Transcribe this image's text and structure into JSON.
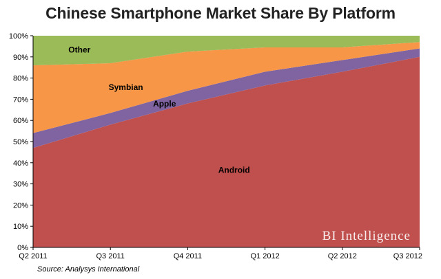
{
  "title": "Chinese Smartphone Market Share By Platform",
  "source": "Source: Analysys International",
  "watermark": "BI Intelligence",
  "colors": {
    "Android": "#c0504d",
    "Apple": "#8064a2",
    "Symbian": "#f79646",
    "Other": "#9bbb59"
  },
  "chart_data": {
    "type": "area",
    "stacked": true,
    "title": "Chinese Smartphone Market Share By Platform",
    "categories": [
      "Q2 2011",
      "Q3 2011",
      "Q4 2011",
      "Q1 2012",
      "Q2 2012",
      "Q3 2012"
    ],
    "ylim": [
      0,
      100
    ],
    "yticks": [
      "0%",
      "10%",
      "20%",
      "30%",
      "40%",
      "50%",
      "60%",
      "70%",
      "80%",
      "90%",
      "100%"
    ],
    "series": [
      {
        "name": "Android",
        "values": [
          47,
          58,
          68,
          76.5,
          83,
          90
        ]
      },
      {
        "name": "Apple",
        "values": [
          7,
          5.5,
          6,
          6.5,
          5.5,
          4
        ]
      },
      {
        "name": "Symbian",
        "values": [
          32,
          23.5,
          18.5,
          11.5,
          6,
          3
        ]
      },
      {
        "name": "Other",
        "values": [
          14,
          13,
          7.5,
          5.5,
          5.5,
          3
        ]
      }
    ],
    "grid": false,
    "legend": "none (labels inside areas)"
  }
}
